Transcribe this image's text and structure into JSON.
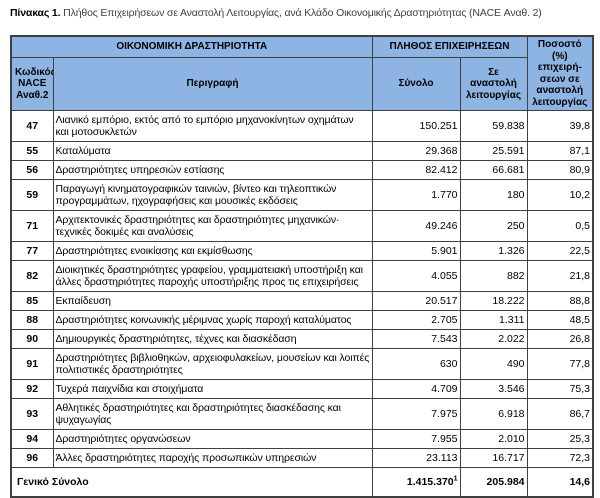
{
  "title": {
    "bold": "Πίνακας 1.",
    "rest": " Πλήθος Επιχειρήσεων σε Αναστολή Λειτουργίας, ανά Κλάδο Οικονομικής Δραστηριότητας (NACE Αναθ. 2)"
  },
  "colors": {
    "header_bg": "#8db4e2",
    "border": "#404040",
    "text": "#000000"
  },
  "table": {
    "group_headers": {
      "activity": "ΟΙΚΟΝΟΜΙΚΗ ΔΡΑΣΤΗΡΙΟΤΗΤΑ",
      "count": "ΠΛΗΘΟΣ ΕΠΙΧΕΙΡΗΣΕΩΝ",
      "percentage": "Ποσοστό (%) επιχειρή- σεων σε αναστολή λειτουργίας"
    },
    "column_headers": {
      "code": "Κωδικός NACE Αναθ.2",
      "description": "Περιγραφή",
      "total": "Σύνολο",
      "suspended": "Σε αναστολή λειτουργίας"
    },
    "rows": [
      {
        "code": "47",
        "desc": "Λιανικό εμπόριο, εκτός από το εμπόριο μηχανοκίνητων οχημάτων και μοτοσυκλετών",
        "total": "150.251",
        "suspended": "59.838",
        "pct": "39,8"
      },
      {
        "code": "55",
        "desc": "Καταλύματα",
        "total": "29.368",
        "suspended": "25.591",
        "pct": "87,1"
      },
      {
        "code": "56",
        "desc": "Δραστηριότητες υπηρεσιών εστίασης",
        "total": "82.412",
        "suspended": "66.681",
        "pct": "80,9"
      },
      {
        "code": "59",
        "desc": "Παραγωγή κινηματογραφικών ταινιών, βίντεο και τηλεοπτικών προγραμμάτων, ηχογραφήσεις και μουσικές εκδόσεις",
        "total": "1.770",
        "suspended": "180",
        "pct": "10,2"
      },
      {
        "code": "71",
        "desc": "Αρχιτεκτονικές δραστηριότητες και δραστηριότητες μηχανικών· τεχνικές δοκιμές και αναλύσεις",
        "total": "49.246",
        "suspended": "250",
        "pct": "0,5"
      },
      {
        "code": "77",
        "desc": "Δραστηριότητες ενοικίασης και εκμίσθωσης",
        "total": "5.901",
        "suspended": "1.326",
        "pct": "22,5"
      },
      {
        "code": "82",
        "desc": "Διοικητικές δραστηριότητες γραφείου, γραμματειακή υποστήριξη και άλλες δραστηριότητες παροχής υποστήριξης προς τις επιχειρήσεις",
        "total": "4.055",
        "suspended": "882",
        "pct": "21,8"
      },
      {
        "code": "85",
        "desc": "Εκπαίδευση",
        "total": "20.517",
        "suspended": "18.222",
        "pct": "88,8"
      },
      {
        "code": "88",
        "desc": "Δραστηριότητες κοινωνικής μέριμνας χωρίς παροχή καταλύματος",
        "total": "2.705",
        "suspended": "1.311",
        "pct": "48,5"
      },
      {
        "code": "90",
        "desc": "Δημιουργικές δραστηριότητες, τέχνες και διασκέδαση",
        "total": "7.543",
        "suspended": "2.022",
        "pct": "26,8"
      },
      {
        "code": "91",
        "desc": "Δραστηριότητες βιβλιοθηκών, αρχειοφυλακείων, μουσείων και λοιπές πολιτιστικές δραστηριότητες",
        "total": "630",
        "suspended": "490",
        "pct": "77,8"
      },
      {
        "code": "92",
        "desc": "Τυχερά παιχνίδια και στοιχήματα",
        "total": "4.709",
        "suspended": "3.546",
        "pct": "75,3"
      },
      {
        "code": "93",
        "desc": "Αθλητικές δραστηριότητες και δραστηριότητες διασκέδασης και ψυχαγωγίας",
        "total": "7.975",
        "suspended": "6.918",
        "pct": "86,7"
      },
      {
        "code": "94",
        "desc": "Δραστηριότητες οργανώσεων",
        "total": "7.955",
        "suspended": "2.010",
        "pct": "25,3"
      },
      {
        "code": "96",
        "desc": "Άλλες δραστηριότητες παροχής προσωπικών υπηρεσιών",
        "total": "23.113",
        "suspended": "16.717",
        "pct": "72,3"
      }
    ],
    "grand_total": {
      "label": "Γενικό Σύνολο",
      "total": "1.415.370",
      "total_footnote": "1",
      "suspended": "205.984",
      "pct": "14,6"
    }
  }
}
